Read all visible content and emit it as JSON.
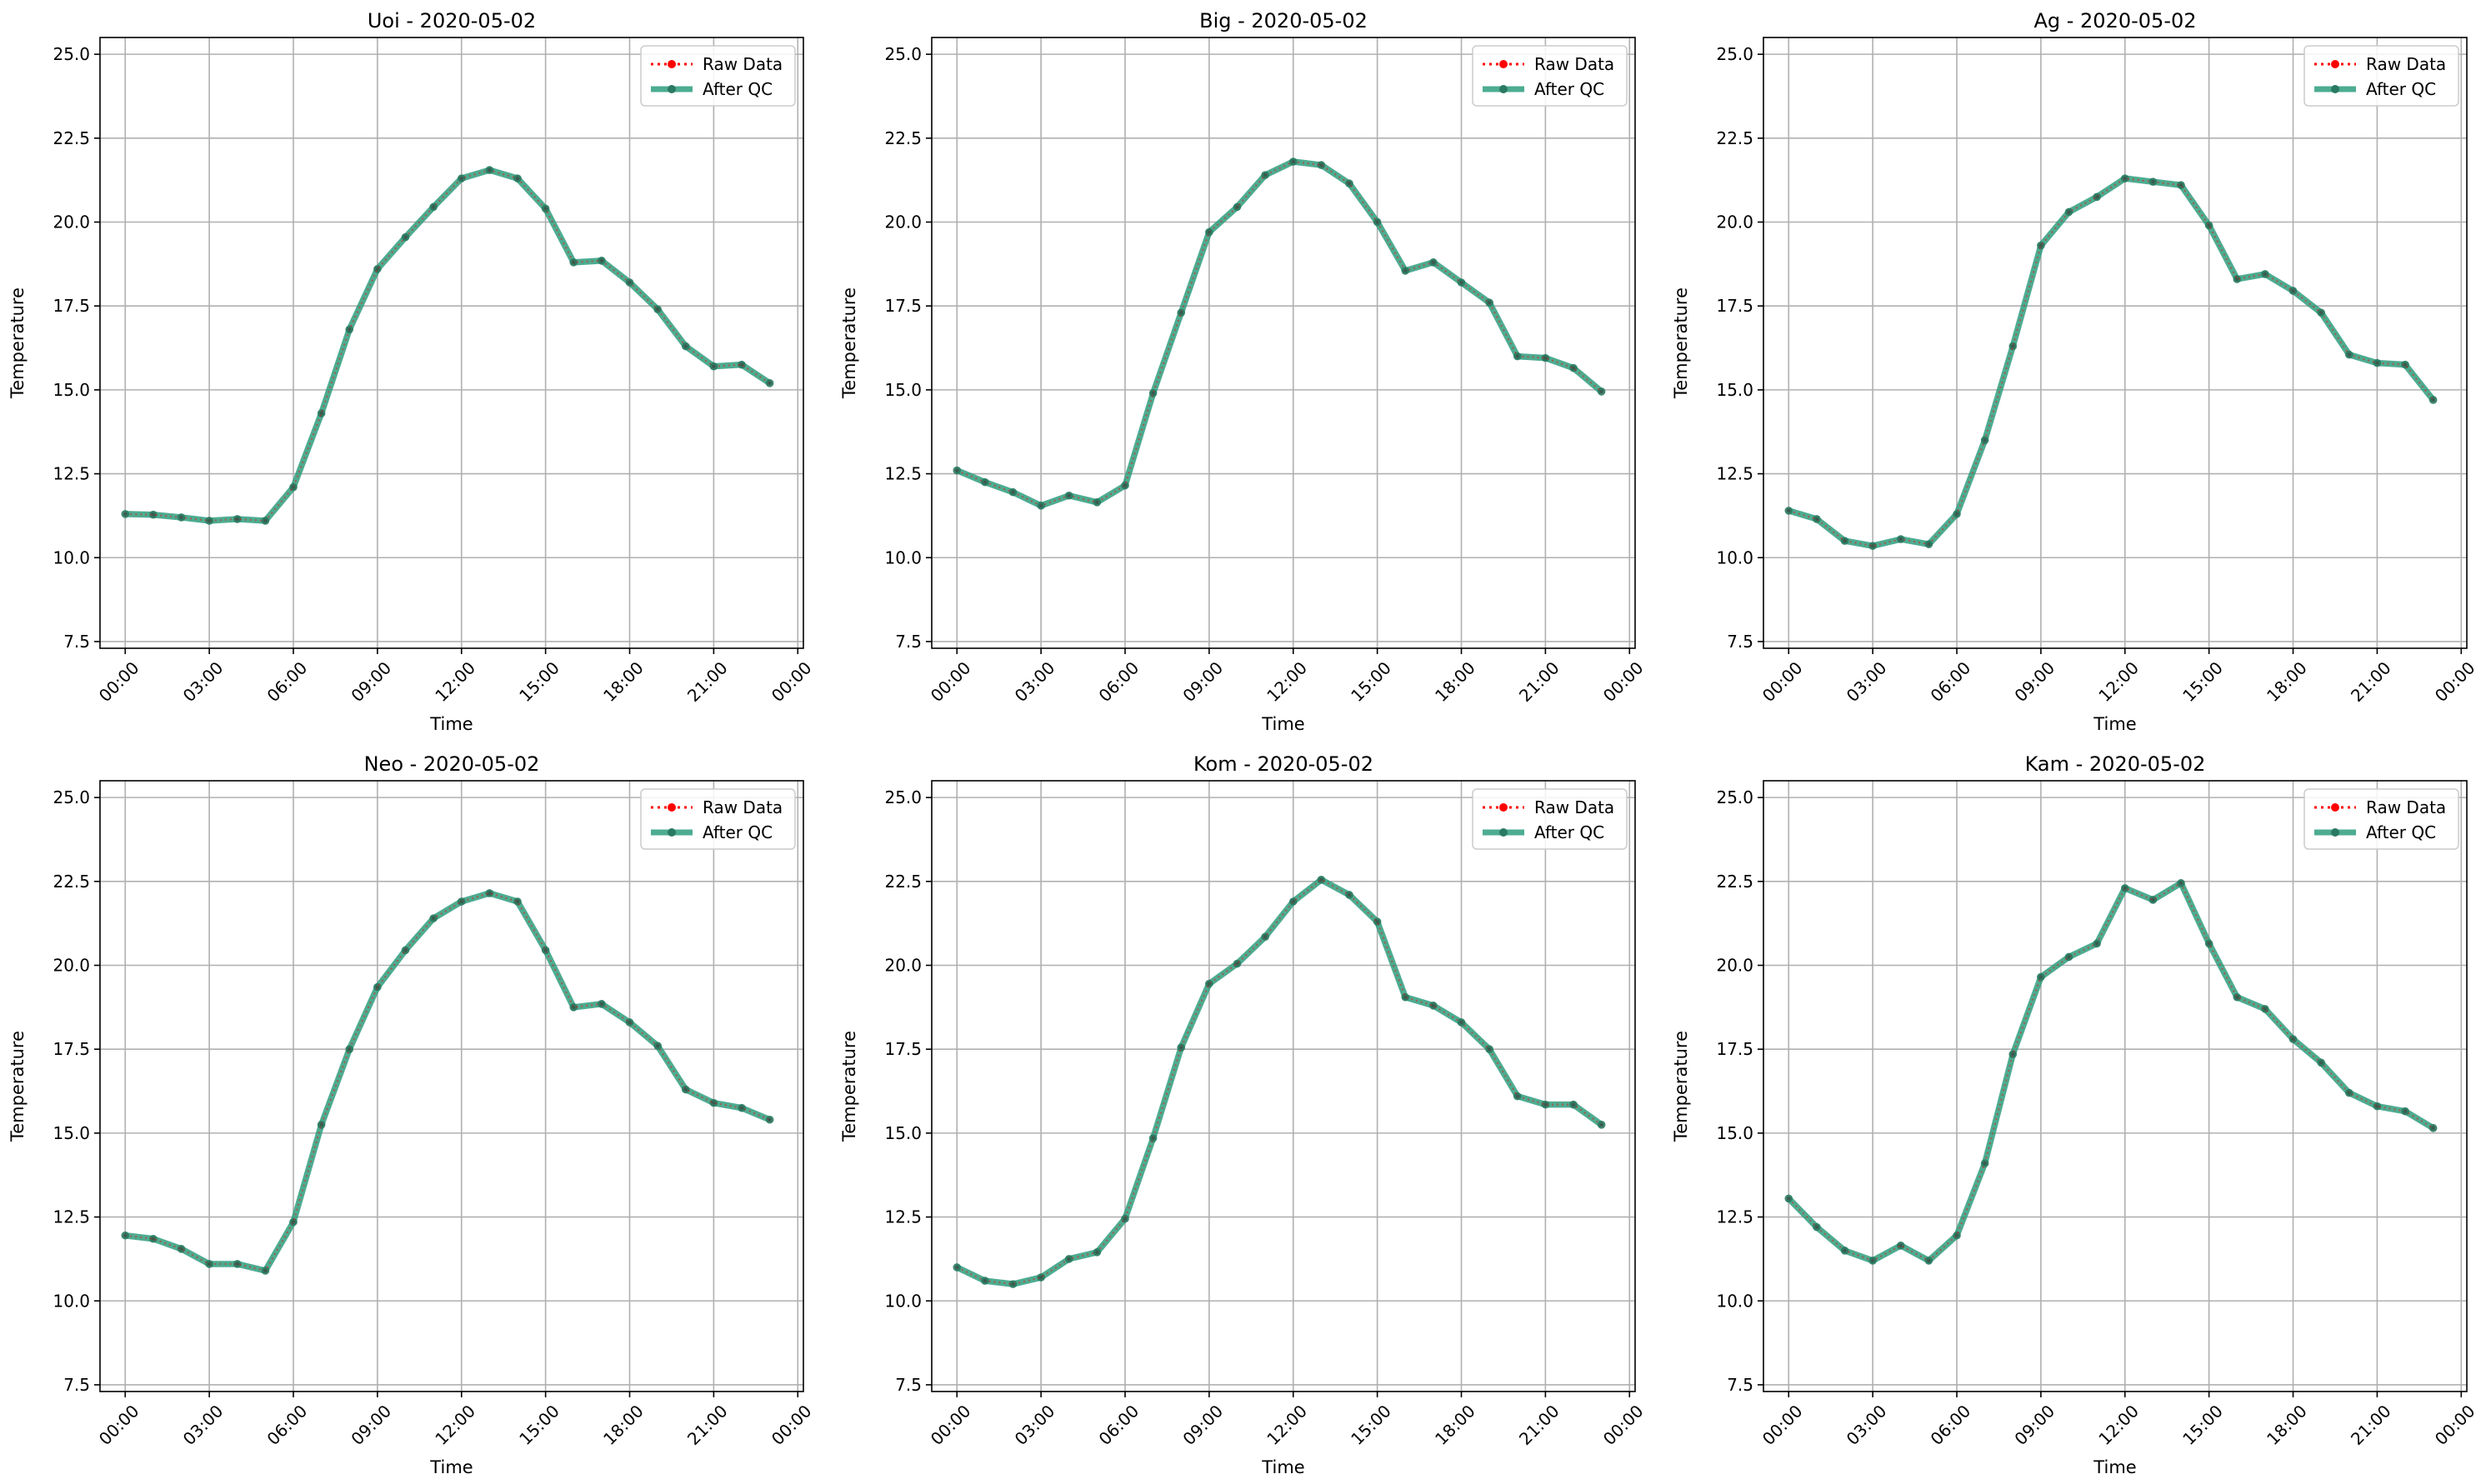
{
  "legend": {
    "raw_label": "Raw Data",
    "qc_label": "After QC",
    "placement": "top-right"
  },
  "colors": {
    "raw": "#ff0000",
    "qc": "#2e9e7e",
    "qc_marker": "#2a7a62",
    "grid": "#b0b0b0"
  },
  "chart_data": [
    {
      "type": "line",
      "title": "Uoi - 2020-05-02",
      "xlabel": "Time",
      "ylabel": "Temperature",
      "x": [
        "00:00",
        "01:00",
        "02:00",
        "03:00",
        "04:00",
        "05:00",
        "06:00",
        "07:00",
        "08:00",
        "09:00",
        "10:00",
        "11:00",
        "12:00",
        "13:00",
        "14:00",
        "15:00",
        "16:00",
        "17:00",
        "18:00",
        "19:00",
        "20:00",
        "21:00",
        "22:00",
        "23:00"
      ],
      "xticks": [
        "00:00",
        "03:00",
        "06:00",
        "09:00",
        "12:00",
        "15:00",
        "18:00",
        "21:00",
        "00:00"
      ],
      "xlim": [
        -0.9,
        24.2
      ],
      "ylim": [
        7.3,
        25.5
      ],
      "yticks": [
        7.5,
        10.0,
        12.5,
        15.0,
        17.5,
        20.0,
        22.5,
        25.0
      ],
      "ytick_labels": [
        "7.5",
        "10.0",
        "12.5",
        "15.0",
        "17.5",
        "20.0",
        "22.5",
        "25.0"
      ],
      "grid": true,
      "series": [
        {
          "name": "Raw Data",
          "values": [
            11.3,
            11.28,
            11.2,
            11.1,
            11.15,
            11.1,
            12.1,
            14.3,
            16.8,
            18.6,
            19.55,
            20.45,
            21.3,
            21.55,
            21.3,
            20.4,
            18.8,
            18.85,
            18.2,
            17.4,
            16.3,
            15.7,
            15.75,
            15.2
          ]
        },
        {
          "name": "After QC",
          "values": [
            11.3,
            11.28,
            11.2,
            11.1,
            11.15,
            11.1,
            12.1,
            14.3,
            16.8,
            18.6,
            19.55,
            20.45,
            21.3,
            21.55,
            21.3,
            20.4,
            18.8,
            18.85,
            18.2,
            17.4,
            16.3,
            15.7,
            15.75,
            15.2
          ]
        }
      ]
    },
    {
      "type": "line",
      "title": "Big - 2020-05-02",
      "xlabel": "Time",
      "ylabel": "Temperature",
      "x": [
        "00:00",
        "01:00",
        "02:00",
        "03:00",
        "04:00",
        "05:00",
        "06:00",
        "07:00",
        "08:00",
        "09:00",
        "10:00",
        "11:00",
        "12:00",
        "13:00",
        "14:00",
        "15:00",
        "16:00",
        "17:00",
        "18:00",
        "19:00",
        "20:00",
        "21:00",
        "22:00",
        "23:00"
      ],
      "xticks": [
        "00:00",
        "03:00",
        "06:00",
        "09:00",
        "12:00",
        "15:00",
        "18:00",
        "21:00",
        "00:00"
      ],
      "xlim": [
        -0.9,
        24.2
      ],
      "ylim": [
        7.3,
        25.5
      ],
      "yticks": [
        7.5,
        10.0,
        12.5,
        15.0,
        17.5,
        20.0,
        22.5,
        25.0
      ],
      "ytick_labels": [
        "7.5",
        "10.0",
        "12.5",
        "15.0",
        "17.5",
        "20.0",
        "22.5",
        "25.0"
      ],
      "grid": true,
      "series": [
        {
          "name": "Raw Data",
          "values": [
            12.6,
            12.25,
            11.95,
            11.55,
            11.85,
            11.65,
            12.15,
            14.9,
            17.3,
            19.7,
            20.45,
            21.4,
            21.8,
            21.7,
            21.15,
            20.0,
            18.55,
            18.8,
            18.2,
            17.6,
            16.0,
            15.95,
            15.65,
            14.95
          ]
        },
        {
          "name": "After QC",
          "values": [
            12.6,
            12.25,
            11.95,
            11.55,
            11.85,
            11.65,
            12.15,
            14.9,
            17.3,
            19.7,
            20.45,
            21.4,
            21.8,
            21.7,
            21.15,
            20.0,
            18.55,
            18.8,
            18.2,
            17.6,
            16.0,
            15.95,
            15.65,
            14.95
          ]
        }
      ]
    },
    {
      "type": "line",
      "title": "Ag - 2020-05-02",
      "xlabel": "Time",
      "ylabel": "Temperature",
      "x": [
        "00:00",
        "01:00",
        "02:00",
        "03:00",
        "04:00",
        "05:00",
        "06:00",
        "07:00",
        "08:00",
        "09:00",
        "10:00",
        "11:00",
        "12:00",
        "13:00",
        "14:00",
        "15:00",
        "16:00",
        "17:00",
        "18:00",
        "19:00",
        "20:00",
        "21:00",
        "22:00",
        "23:00"
      ],
      "xticks": [
        "00:00",
        "03:00",
        "06:00",
        "09:00",
        "12:00",
        "15:00",
        "18:00",
        "21:00",
        "00:00"
      ],
      "xlim": [
        -0.9,
        24.2
      ],
      "ylim": [
        7.3,
        25.5
      ],
      "yticks": [
        7.5,
        10.0,
        12.5,
        15.0,
        17.5,
        20.0,
        22.5,
        25.0
      ],
      "ytick_labels": [
        "7.5",
        "10.0",
        "12.5",
        "15.0",
        "17.5",
        "20.0",
        "22.5",
        "25.0"
      ],
      "grid": true,
      "series": [
        {
          "name": "Raw Data",
          "values": [
            11.4,
            11.15,
            10.5,
            10.35,
            10.55,
            10.4,
            11.3,
            13.5,
            16.3,
            19.3,
            20.3,
            20.75,
            21.3,
            21.2,
            21.1,
            19.9,
            18.3,
            18.45,
            17.95,
            17.3,
            16.05,
            15.8,
            15.75,
            14.7
          ]
        },
        {
          "name": "After QC",
          "values": [
            11.4,
            11.15,
            10.5,
            10.35,
            10.55,
            10.4,
            11.3,
            13.5,
            16.3,
            19.3,
            20.3,
            20.75,
            21.3,
            21.2,
            21.1,
            19.9,
            18.3,
            18.45,
            17.95,
            17.3,
            16.05,
            15.8,
            15.75,
            14.7
          ]
        }
      ]
    },
    {
      "type": "line",
      "title": "Neo - 2020-05-02",
      "xlabel": "Time",
      "ylabel": "Temperature",
      "x": [
        "00:00",
        "01:00",
        "02:00",
        "03:00",
        "04:00",
        "05:00",
        "06:00",
        "07:00",
        "08:00",
        "09:00",
        "10:00",
        "11:00",
        "12:00",
        "13:00",
        "14:00",
        "15:00",
        "16:00",
        "17:00",
        "18:00",
        "19:00",
        "20:00",
        "21:00",
        "22:00",
        "23:00"
      ],
      "xticks": [
        "00:00",
        "03:00",
        "06:00",
        "09:00",
        "12:00",
        "15:00",
        "18:00",
        "21:00",
        "00:00"
      ],
      "xlim": [
        -0.9,
        24.2
      ],
      "ylim": [
        7.3,
        25.5
      ],
      "yticks": [
        7.5,
        10.0,
        12.5,
        15.0,
        17.5,
        20.0,
        22.5,
        25.0
      ],
      "ytick_labels": [
        "7.5",
        "10.0",
        "12.5",
        "15.0",
        "17.5",
        "20.0",
        "22.5",
        "25.0"
      ],
      "grid": true,
      "series": [
        {
          "name": "Raw Data",
          "values": [
            11.95,
            11.85,
            11.55,
            11.1,
            11.1,
            10.9,
            12.35,
            15.25,
            17.5,
            19.35,
            20.45,
            21.4,
            21.9,
            22.15,
            21.9,
            20.45,
            18.75,
            18.85,
            18.3,
            17.6,
            16.3,
            15.9,
            15.75,
            15.4
          ]
        },
        {
          "name": "After QC",
          "values": [
            11.95,
            11.85,
            11.55,
            11.1,
            11.1,
            10.9,
            12.35,
            15.25,
            17.5,
            19.35,
            20.45,
            21.4,
            21.9,
            22.15,
            21.9,
            20.45,
            18.75,
            18.85,
            18.3,
            17.6,
            16.3,
            15.9,
            15.75,
            15.4
          ]
        }
      ]
    },
    {
      "type": "line",
      "title": "Kom - 2020-05-02",
      "xlabel": "Time",
      "ylabel": "Temperature",
      "x": [
        "00:00",
        "01:00",
        "02:00",
        "03:00",
        "04:00",
        "05:00",
        "06:00",
        "07:00",
        "08:00",
        "09:00",
        "10:00",
        "11:00",
        "12:00",
        "13:00",
        "14:00",
        "15:00",
        "16:00",
        "17:00",
        "18:00",
        "19:00",
        "20:00",
        "21:00",
        "22:00",
        "23:00"
      ],
      "xticks": [
        "00:00",
        "03:00",
        "06:00",
        "09:00",
        "12:00",
        "15:00",
        "18:00",
        "21:00",
        "00:00"
      ],
      "xlim": [
        -0.9,
        24.2
      ],
      "ylim": [
        7.3,
        25.5
      ],
      "yticks": [
        7.5,
        10.0,
        12.5,
        15.0,
        17.5,
        20.0,
        22.5,
        25.0
      ],
      "ytick_labels": [
        "7.5",
        "10.0",
        "12.5",
        "15.0",
        "17.5",
        "20.0",
        "22.5",
        "25.0"
      ],
      "grid": true,
      "series": [
        {
          "name": "Raw Data",
          "values": [
            11.0,
            10.6,
            10.5,
            10.7,
            11.25,
            11.45,
            12.45,
            14.85,
            17.55,
            19.45,
            20.05,
            20.85,
            21.9,
            22.55,
            22.1,
            21.3,
            19.05,
            18.8,
            18.3,
            17.5,
            16.1,
            15.85,
            15.85,
            15.25
          ]
        },
        {
          "name": "After QC",
          "values": [
            11.0,
            10.6,
            10.5,
            10.7,
            11.25,
            11.45,
            12.45,
            14.85,
            17.55,
            19.45,
            20.05,
            20.85,
            21.9,
            22.55,
            22.1,
            21.3,
            19.05,
            18.8,
            18.3,
            17.5,
            16.1,
            15.85,
            15.85,
            15.25
          ]
        }
      ]
    },
    {
      "type": "line",
      "title": "Kam - 2020-05-02",
      "xlabel": "Time",
      "ylabel": "Temperature",
      "x": [
        "00:00",
        "01:00",
        "02:00",
        "03:00",
        "04:00",
        "05:00",
        "06:00",
        "07:00",
        "08:00",
        "09:00",
        "10:00",
        "11:00",
        "12:00",
        "13:00",
        "14:00",
        "15:00",
        "16:00",
        "17:00",
        "18:00",
        "19:00",
        "20:00",
        "21:00",
        "22:00",
        "23:00"
      ],
      "xticks": [
        "00:00",
        "03:00",
        "06:00",
        "09:00",
        "12:00",
        "15:00",
        "18:00",
        "21:00",
        "00:00"
      ],
      "xlim": [
        -0.9,
        24.2
      ],
      "ylim": [
        7.3,
        25.5
      ],
      "yticks": [
        7.5,
        10.0,
        12.5,
        15.0,
        17.5,
        20.0,
        22.5,
        25.0
      ],
      "ytick_labels": [
        "7.5",
        "10.0",
        "12.5",
        "15.0",
        "17.5",
        "20.0",
        "22.5",
        "25.0"
      ],
      "grid": true,
      "series": [
        {
          "name": "Raw Data",
          "values": [
            13.05,
            12.2,
            11.5,
            11.2,
            11.65,
            11.2,
            11.95,
            14.1,
            17.35,
            19.65,
            20.25,
            20.65,
            22.3,
            21.95,
            22.45,
            20.65,
            19.05,
            18.7,
            17.8,
            17.1,
            16.2,
            15.8,
            15.65,
            15.15
          ]
        },
        {
          "name": "After QC",
          "values": [
            13.05,
            12.2,
            11.5,
            11.2,
            11.65,
            11.2,
            11.95,
            14.1,
            17.35,
            19.65,
            20.25,
            20.65,
            22.3,
            21.95,
            22.45,
            20.65,
            19.05,
            18.7,
            17.8,
            17.1,
            16.2,
            15.8,
            15.65,
            15.15
          ]
        }
      ]
    }
  ]
}
